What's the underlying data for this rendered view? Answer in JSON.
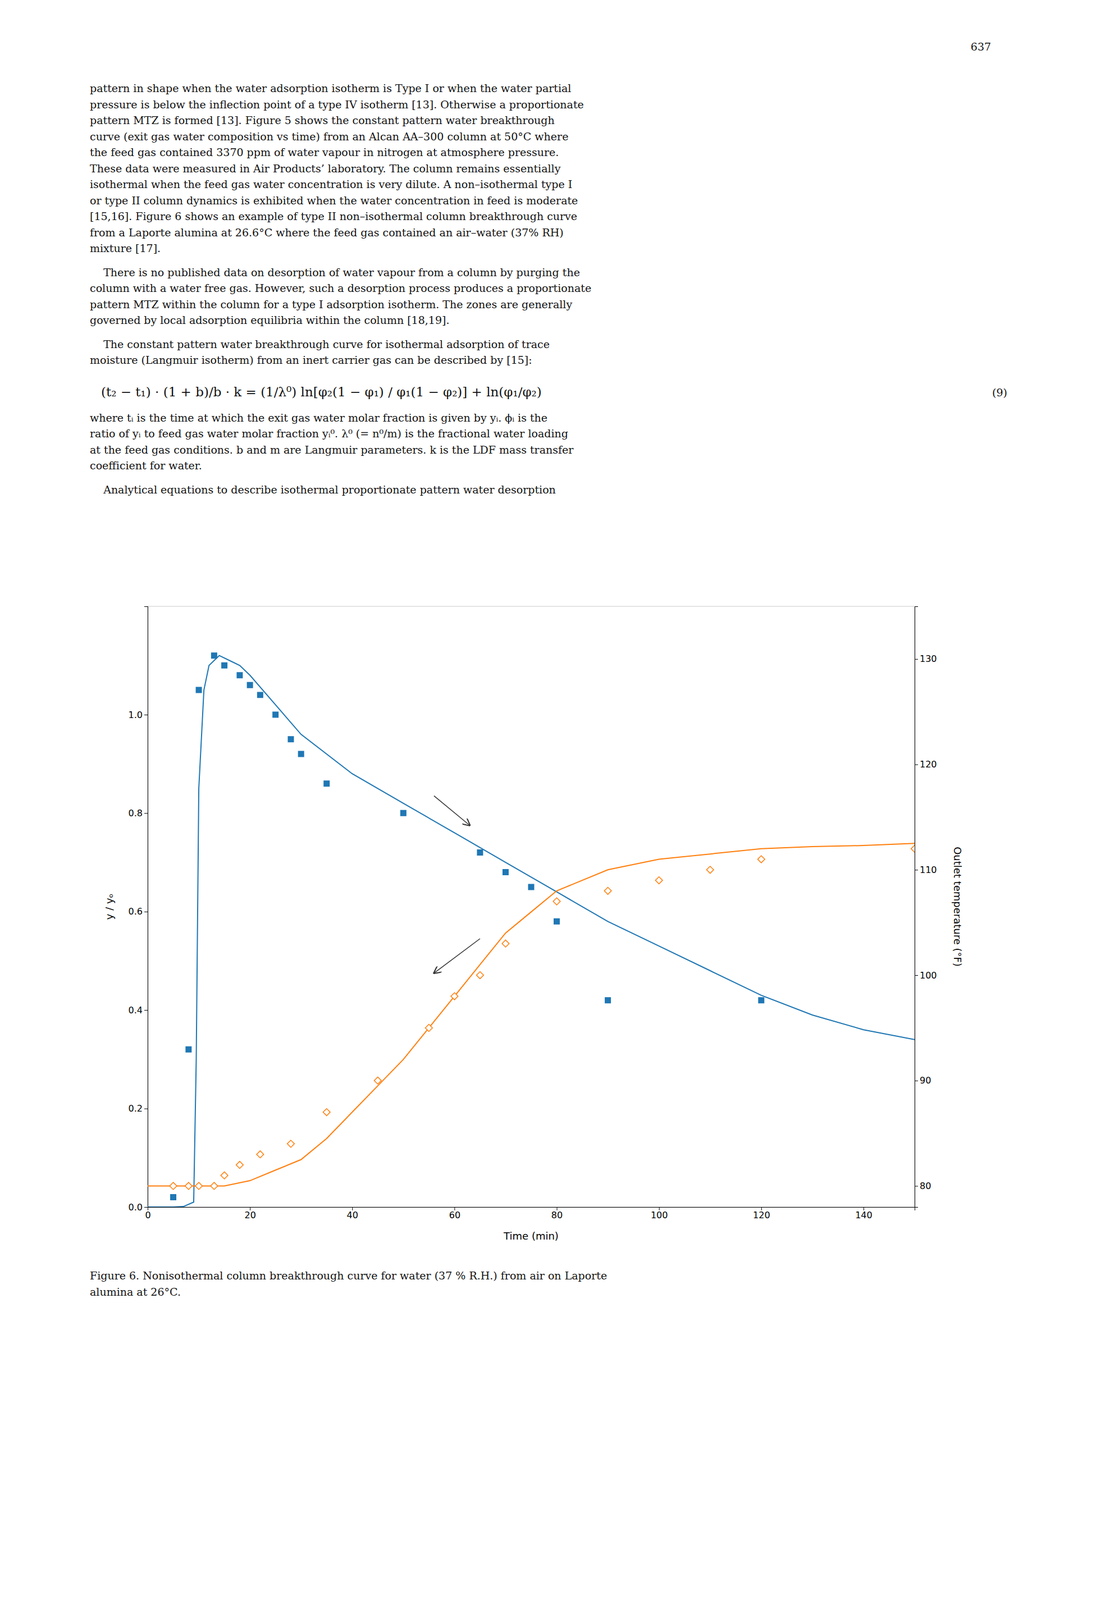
{
  "page": {
    "page_number": "637",
    "paragraphs_before": [
      "pattern in shape when the water adsorption isotherm is Type I or when the water partial\npressure is below the inflection point of a type IV isotherm [13]. Otherwise a proportionate\npattern MTZ is formed [13]. Figure 5 shows the constant pattern water breakthrough\ncurve (exit gas water composition vs time) from an Alcan AA–300 column at 50°C where\nthe feed gas contained 3370 ppm of water vapour in nitrogen at atmosphere pressure.\nThese data were measured in Air Products’ laboratory. The column remains essentially\nisothermal when the feed gas water concentration is very dilute. A non–isothermal type I\nor type II column dynamics is exhibited when the water concentration in feed is moderate\n[15,16]. Figure 6 shows an example of type II non–isothermal column breakthrough curve\nfrom a Laporte alumina at 26.6°C where the feed gas contained an air–water (37% RH)\nmixture [17].",
      "    There is no published data on desorption of water vapour from a column by purging the\ncolumn with a water free gas. However, such a desorption process produces a proportionate\npattern MTZ within the column for a type I adsorption isotherm. The zones are generally\ngoverned by local adsorption equilibria within the column [18,19].",
      "    The constant pattern water breakthrough curve for isothermal adsorption of trace\nmoisture (Langmuir isotherm) from an inert carrier gas can be described by [15]:"
    ],
    "equation": "(t₂ − t₁) · (1 + b)/b · k = (1/λ⁰) ln[φ₂(1 − φ₁) / φ₁(1 − φ₂)] + ln(φ₁/φ₂)",
    "equation_number": "(9)",
    "paragraphs_after": [
      "where tᵢ is the time at which the exit gas water molar fraction is given by yᵢ. ϕᵢ is the\nratio of yᵢ to feed gas water molar fraction yᵢ⁰. λ⁰ (= n⁰/m) is the fractional water loading\nat the feed gas conditions. b and m are Langmuir parameters. k is the LDF mass transfer\ncoefficient for water.",
      "    Analytical equations to describe isothermal proportionate pattern water desorption"
    ]
  },
  "chart_data": {
    "type": "line",
    "title": "Figure 6. Nonisothermal column breakthrough curve for water (37 % R.H.) from air on Laporte\nalumina at 26°C.",
    "xlabel": "Time (min)",
    "ylabel": "y / yₒ",
    "y2label": "Outlet temperature (°F)",
    "xlim": [
      0,
      150
    ],
    "ylim": [
      0,
      1.22
    ],
    "y2lim": [
      78,
      135
    ],
    "xticks": [
      0,
      20,
      40,
      60,
      80,
      100,
      120,
      140
    ],
    "yticks": [
      {
        "value": 0,
        "label": "0.0"
      },
      0.2,
      0.4,
      0.6,
      0.8,
      {
        "value": 1.0,
        "label": "1.0"
      }
    ],
    "y2ticks": [
      80,
      90,
      100,
      110,
      120,
      130
    ],
    "series": [
      {
        "type": "line",
        "line_style": "solid",
        "x": [
          0,
          3,
          5,
          7,
          9,
          9.5,
          10,
          11,
          12,
          14,
          16,
          18,
          20,
          25,
          30,
          40,
          50,
          60,
          70,
          80,
          90,
          100,
          110,
          120,
          130,
          140,
          150
        ],
        "values": [
          0.0,
          0.0,
          0.0,
          0.001,
          0.01,
          0.3,
          0.85,
          1.05,
          1.1,
          1.12,
          1.11,
          1.1,
          1.08,
          1.02,
          0.96,
          0.88,
          0.82,
          0.76,
          0.7,
          0.64,
          0.58,
          0.53,
          0.48,
          0.43,
          0.39,
          0.36,
          0.34
        ]
      },
      {
        "type": "line",
        "line_style": "solid",
        "axis": "y2",
        "x": [
          0,
          5,
          10,
          15,
          20,
          25,
          30,
          35,
          40,
          45,
          50,
          55,
          60,
          65,
          70,
          75,
          80,
          90,
          100,
          110,
          120,
          130,
          140,
          150
        ],
        "values": [
          80,
          80,
          80,
          80,
          80.5,
          81.5,
          82.5,
          84.5,
          87,
          89.5,
          92,
          95,
          98,
          101,
          104,
          106,
          108,
          110,
          111,
          111.5,
          112,
          112.2,
          112.3,
          112.5
        ]
      },
      {
        "type": "scatter",
        "marker": "square",
        "x": [
          5,
          8,
          10,
          13,
          15,
          18,
          20,
          22,
          25,
          28,
          30,
          35,
          50,
          65,
          70,
          75,
          80,
          90,
          120
        ],
        "values": [
          0.02,
          0.32,
          1.05,
          1.12,
          1.1,
          1.08,
          1.06,
          1.04,
          1.0,
          0.95,
          0.92,
          0.86,
          0.8,
          0.72,
          0.68,
          0.65,
          0.58,
          0.42,
          0.42
        ]
      },
      {
        "type": "scatter",
        "marker": "diamond",
        "axis": "y2",
        "x": [
          5,
          8,
          10,
          13,
          15,
          18,
          22,
          28,
          35,
          45,
          55,
          60,
          65,
          70,
          80,
          90,
          100,
          110,
          120,
          150
        ],
        "values": [
          80,
          80,
          80,
          80,
          81,
          82,
          83,
          84,
          87,
          90,
          95,
          98,
          100,
          103,
          107,
          108,
          109,
          110,
          111,
          112
        ]
      }
    ],
    "annotations": [
      {
        "x": 63,
        "y": 0.775,
        "from_x": 56,
        "from_y": 0.835
      },
      {
        "x": 56,
        "y": 0.475,
        "from_x": 65,
        "from_y": 0.545
      }
    ]
  }
}
